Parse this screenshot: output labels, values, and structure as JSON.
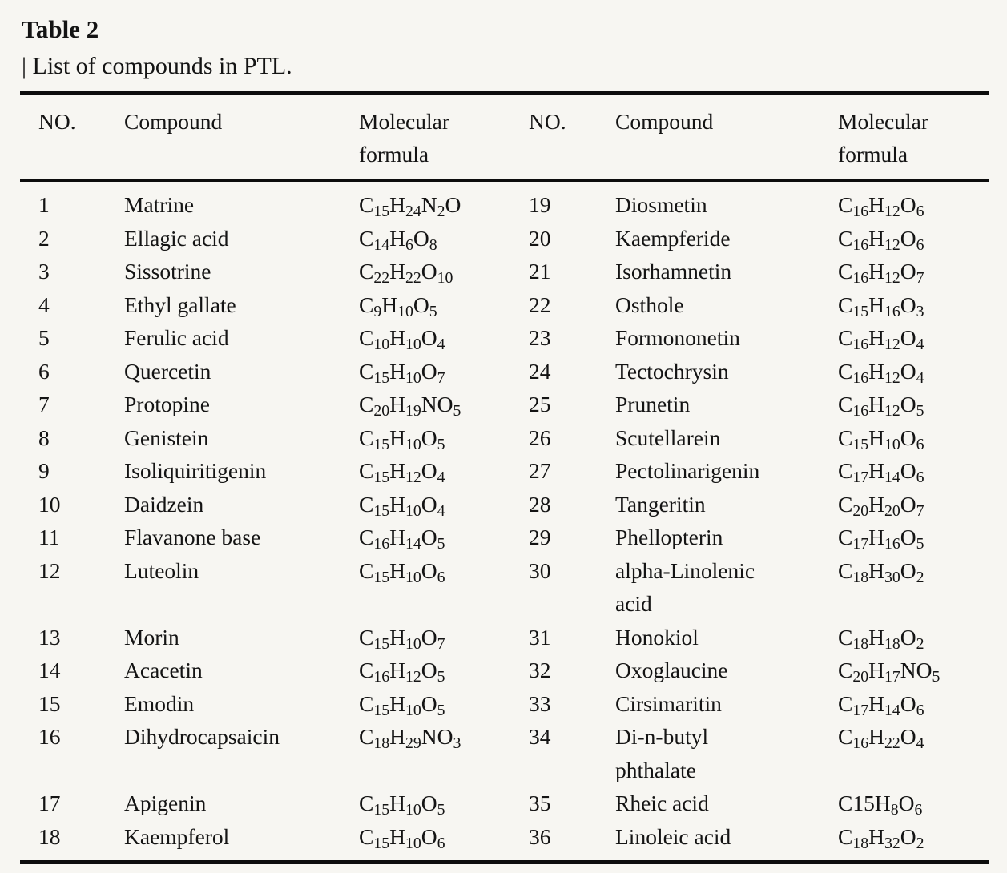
{
  "page": {
    "background_color": "#f7f6f2",
    "text_color": "#141414",
    "rule_color": "#0d0d0d"
  },
  "table": {
    "title": "Table 2",
    "caption": "| List of compounds in PTL.",
    "columns": [
      "NO.",
      "Compound",
      "Molecular formula",
      "NO.",
      "Compound",
      "Molecular formula"
    ],
    "rows": [
      [
        "1",
        "Matrine",
        "C~15~H~24~N~2~O",
        "19",
        "Diosmetin",
        "C~16~H~12~O~6~"
      ],
      [
        "2",
        "Ellagic acid",
        "C~14~H~6~O~8~",
        "20",
        "Kaempferide",
        "C~16~H~12~O~6~"
      ],
      [
        "3",
        "Sissotrine",
        "C~22~H~22~O~10~",
        "21",
        "Isorhamnetin",
        "C~16~H~12~O~7~"
      ],
      [
        "4",
        "Ethyl gallate",
        "C~9~H~10~O~5~",
        "22",
        "Osthole",
        "C~15~H~16~O~3~"
      ],
      [
        "5",
        "Ferulic acid",
        "C~10~H~10~O~4~",
        "23",
        "Formononetin",
        "C~16~H~12~O~4~"
      ],
      [
        "6",
        "Quercetin",
        "C~15~H~10~O~7~",
        "24",
        "Tectochrysin",
        "C~16~H~12~O~4~"
      ],
      [
        "7",
        "Protopine",
        "C~20~H~19~NO~5~",
        "25",
        "Prunetin",
        "C~16~H~12~O~5~"
      ],
      [
        "8",
        "Genistein",
        "C~15~H~10~O~5~",
        "26",
        "Scutellarein",
        "C~15~H~10~O~6~"
      ],
      [
        "9",
        "Isoliquiritigenin",
        "C~15~H~12~O~4~",
        "27",
        "Pectolinarigenin",
        "C~17~H~14~O~6~"
      ],
      [
        "10",
        "Daidzein",
        "C~15~H~10~O~4~",
        "28",
        "Tangeritin",
        "C~20~H~20~O~7~"
      ],
      [
        "11",
        "Flavanone base",
        "C~16~H~14~O~5~",
        "29",
        "Phellopterin",
        "C~17~H~16~O~5~"
      ],
      [
        "12",
        "Luteolin",
        "C~15~H~10~O~6~",
        "30",
        "alpha-Linolenic acid",
        "C~18~H~30~O~2~"
      ],
      [
        "13",
        "Morin",
        "C~15~H~10~O~7~",
        "31",
        "Honokiol",
        "C~18~H~18~O~2~"
      ],
      [
        "14",
        "Acacetin",
        "C~16~H~12~O~5~",
        "32",
        "Oxoglaucine",
        "C~20~H~17~NO~5~"
      ],
      [
        "15",
        "Emodin",
        "C~15~H~10~O~5~",
        "33",
        "Cirsimaritin",
        "C~17~H~14~O~6~"
      ],
      [
        "16",
        "Dihydrocapsaicin",
        "C~18~H~29~NO~3~",
        "34",
        "Di-n-butyl phthalate",
        "C~16~H~22~O~4~"
      ],
      [
        "17",
        "Apigenin",
        "C~15~H~10~O~5~",
        "35",
        "Rheic acid",
        "C15H~8~O~6~"
      ],
      [
        "18",
        "Kaempferol",
        "C~15~H~10~O~6~",
        "36",
        "Linoleic acid",
        "C~18~H~32~O~2~"
      ]
    ]
  }
}
